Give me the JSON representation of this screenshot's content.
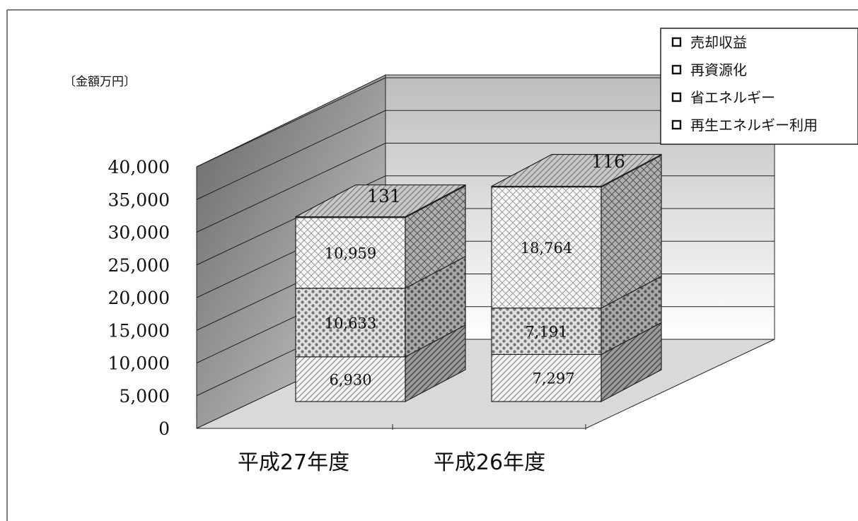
{
  "chart_data": {
    "type": "bar",
    "stacked": true,
    "three_d": true,
    "unit_label": "〔金額万円〕",
    "categories": [
      "平成27年度",
      "平成26年度"
    ],
    "series": [
      {
        "name": "再生エネルギー利用",
        "values": [
          6930,
          7297
        ],
        "color": "#d8d8d8",
        "pattern": "diagonal"
      },
      {
        "name": "省エネルギー",
        "values": [
          10633,
          7191
        ],
        "color": "#bdbdbd",
        "pattern": "dots"
      },
      {
        "name": "再資源化",
        "values": [
          10959,
          18764
        ],
        "color": "#ececec",
        "pattern": "crosshatch"
      },
      {
        "name": "売却収益",
        "values": [
          131,
          116
        ],
        "color": "#cfcfcf",
        "pattern": "diagonal"
      }
    ],
    "data_labels": [
      [
        "6,930",
        "10,633",
        "10,959",
        "131"
      ],
      [
        "7,297",
        "7,191",
        "18,764",
        "116"
      ]
    ],
    "legend_order": [
      "売却収益",
      "再資源化",
      "省エネルギー",
      "再生エネルギー利用"
    ],
    "y_ticks": [
      "0",
      "5,000",
      "10,000",
      "15,000",
      "20,000",
      "25,000",
      "30,000",
      "35,000",
      "40,000"
    ],
    "ylim": [
      0,
      40000
    ],
    "grid": true,
    "legend_position": "top-right"
  }
}
